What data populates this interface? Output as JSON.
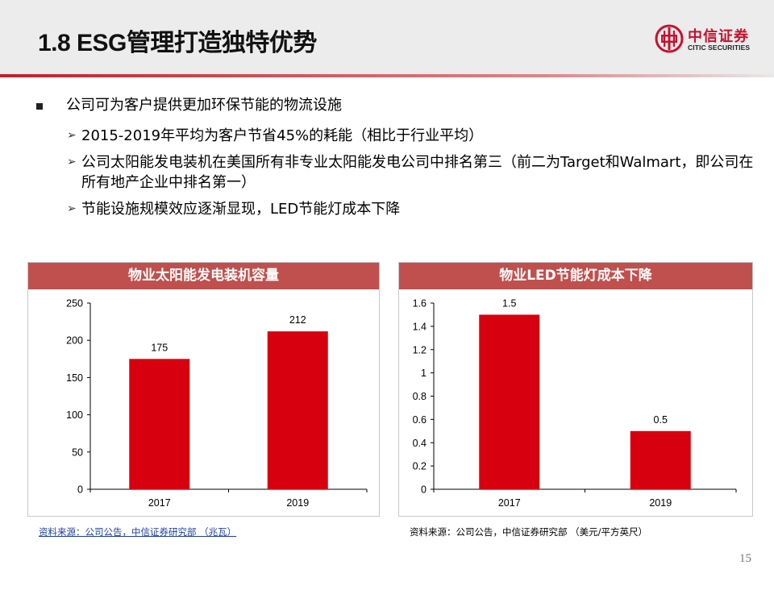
{
  "header": {
    "title": "1.8 ESG管理打造独特优势",
    "logo_cn": "中信证券",
    "logo_en": "CITIC SECURITIES"
  },
  "bullets": {
    "main": "公司可为客户提供更加环保节能的物流设施",
    "subs": [
      "2015-2019年平均为客户节省45%的耗能（相比于行业平均）",
      "公司太阳能发电装机在美国所有非专业太阳能发电公司中排名第三（前二为Target和Walmart，即公司在所有地产企业中排名第一）",
      "节能设施规模效应逐渐显现，LED节能灯成本下降"
    ]
  },
  "colors": {
    "bar": "#d7000f",
    "panel_header": "#c0504d",
    "accent": "#c8102e"
  },
  "chart_data": [
    {
      "type": "bar",
      "title": "物业太阳能发电装机容量",
      "categories": [
        "2017",
        "2019"
      ],
      "values": [
        175,
        212
      ],
      "ylim": [
        0,
        250
      ],
      "yticks": [
        "0",
        "50",
        "100",
        "150",
        "200",
        "250"
      ],
      "grid": false,
      "source": "资料来源：公司公告，中信证券研究部 （兆瓦）"
    },
    {
      "type": "bar",
      "title": "物业LED节能灯成本下降",
      "categories": [
        "2017",
        "2019"
      ],
      "values": [
        1.5,
        0.5
      ],
      "ylim": [
        0,
        1.6
      ],
      "yticks": [
        "0",
        "0.2",
        "0.4",
        "0.6",
        "0.8",
        "1",
        "1.2",
        "1.4",
        "1.6"
      ],
      "grid": false,
      "source": "资料来源：公司公告，中信证券研究部 （美元/平方英尺）"
    }
  ],
  "page_number": "15"
}
